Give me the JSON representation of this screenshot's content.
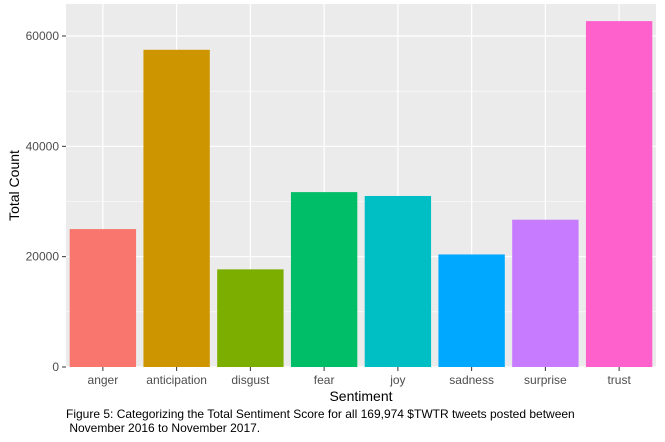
{
  "chart_data": {
    "type": "bar",
    "categories": [
      "anger",
      "anticipation",
      "disgust",
      "fear",
      "joy",
      "sadness",
      "surprise",
      "trust"
    ],
    "values": [
      25000,
      57500,
      17700,
      31700,
      31000,
      20400,
      26700,
      62700
    ],
    "colors": [
      "#F8766D",
      "#CD9600",
      "#7CAE00",
      "#00BE67",
      "#00BFC4",
      "#00A9FF",
      "#C77CFF",
      "#FF61CC"
    ],
    "xlabel": "Sentiment",
    "ylabel": "Total Count",
    "ylim": [
      0,
      65800
    ],
    "yticks": [
      0,
      20000,
      40000,
      60000
    ],
    "ytick_labels": [
      "0",
      "20000",
      "40000",
      "60000"
    ],
    "grid": true,
    "panel_background": "#EBEBEB",
    "legend": "none"
  },
  "caption": {
    "line1": "Figure 5: Categorizing the Total Sentiment Score for all 169,974 $TWTR tweets posted between",
    "line2": " November 2016 to November 2017."
  }
}
